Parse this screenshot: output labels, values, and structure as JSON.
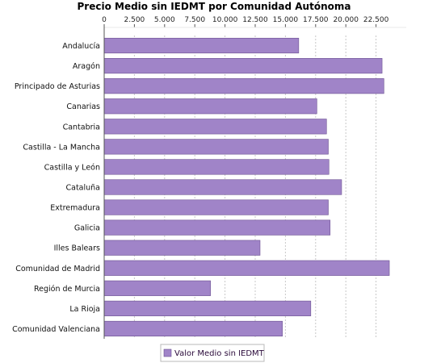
{
  "chart_data": {
    "type": "bar",
    "orientation": "horizontal",
    "title": "Precio Medio sin IEDMT por Comunidad Autónoma",
    "xlim": [
      0,
      25000
    ],
    "ticks": [
      0,
      2500,
      5000,
      7500,
      10000,
      12500,
      15000,
      17500,
      20000,
      22500
    ],
    "tick_labels": [
      "0",
      "2.500",
      "5.000",
      "7.500",
      "10.000",
      "12.500",
      "15.000",
      "17.500",
      "20.000",
      "22.500"
    ],
    "axis_position": "top",
    "grid": true,
    "legend_position": "bottom",
    "categories": [
      "Andalucía",
      "Aragón",
      "Principado de Asturias",
      "Canarias",
      "Cantabria",
      "Castilla - La Mancha",
      "Castilla y León",
      "Cataluña",
      "Extremadura",
      "Galicia",
      "Illes Balears",
      "Comunidad de Madrid",
      "Región de Murcia",
      "La Rioja",
      "Comunidad Valenciana"
    ],
    "series": [
      {
        "name": "Valor Medio sin IEDMT",
        "color": "#a084c8",
        "values": [
          16100,
          23000,
          23150,
          17600,
          18400,
          18550,
          18600,
          19650,
          18550,
          18700,
          12900,
          23600,
          8800,
          17100,
          14750
        ]
      }
    ]
  }
}
